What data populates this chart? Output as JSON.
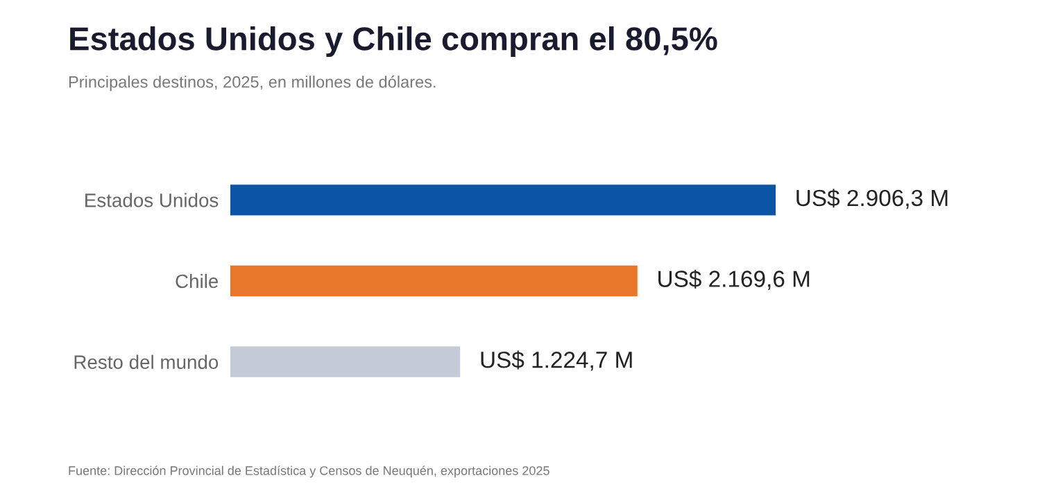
{
  "chart_data": {
    "type": "bar",
    "orientation": "horizontal",
    "title": "Estados Unidos y Chile compran el 80,5%",
    "subtitle": "Principales destinos, 2025, en millones de dólares.",
    "categories": [
      "Estados Unidos",
      "Chile",
      "Resto del mundo"
    ],
    "values": [
      2906.3,
      2169.6,
      1224.7
    ],
    "colors": [
      "#0a55a5",
      "#e8772b",
      "#c4cbd6"
    ],
    "value_labels": [
      "US$ 2.906,3 M",
      "US$ 2.169,6 M",
      "US$ 1.224,7 M"
    ],
    "grid": false,
    "legend": false,
    "annotations": [
      "Fuente: Dirección Provincial de Estadística y Censos de Neuquén, exportaciones 2025"
    ]
  }
}
